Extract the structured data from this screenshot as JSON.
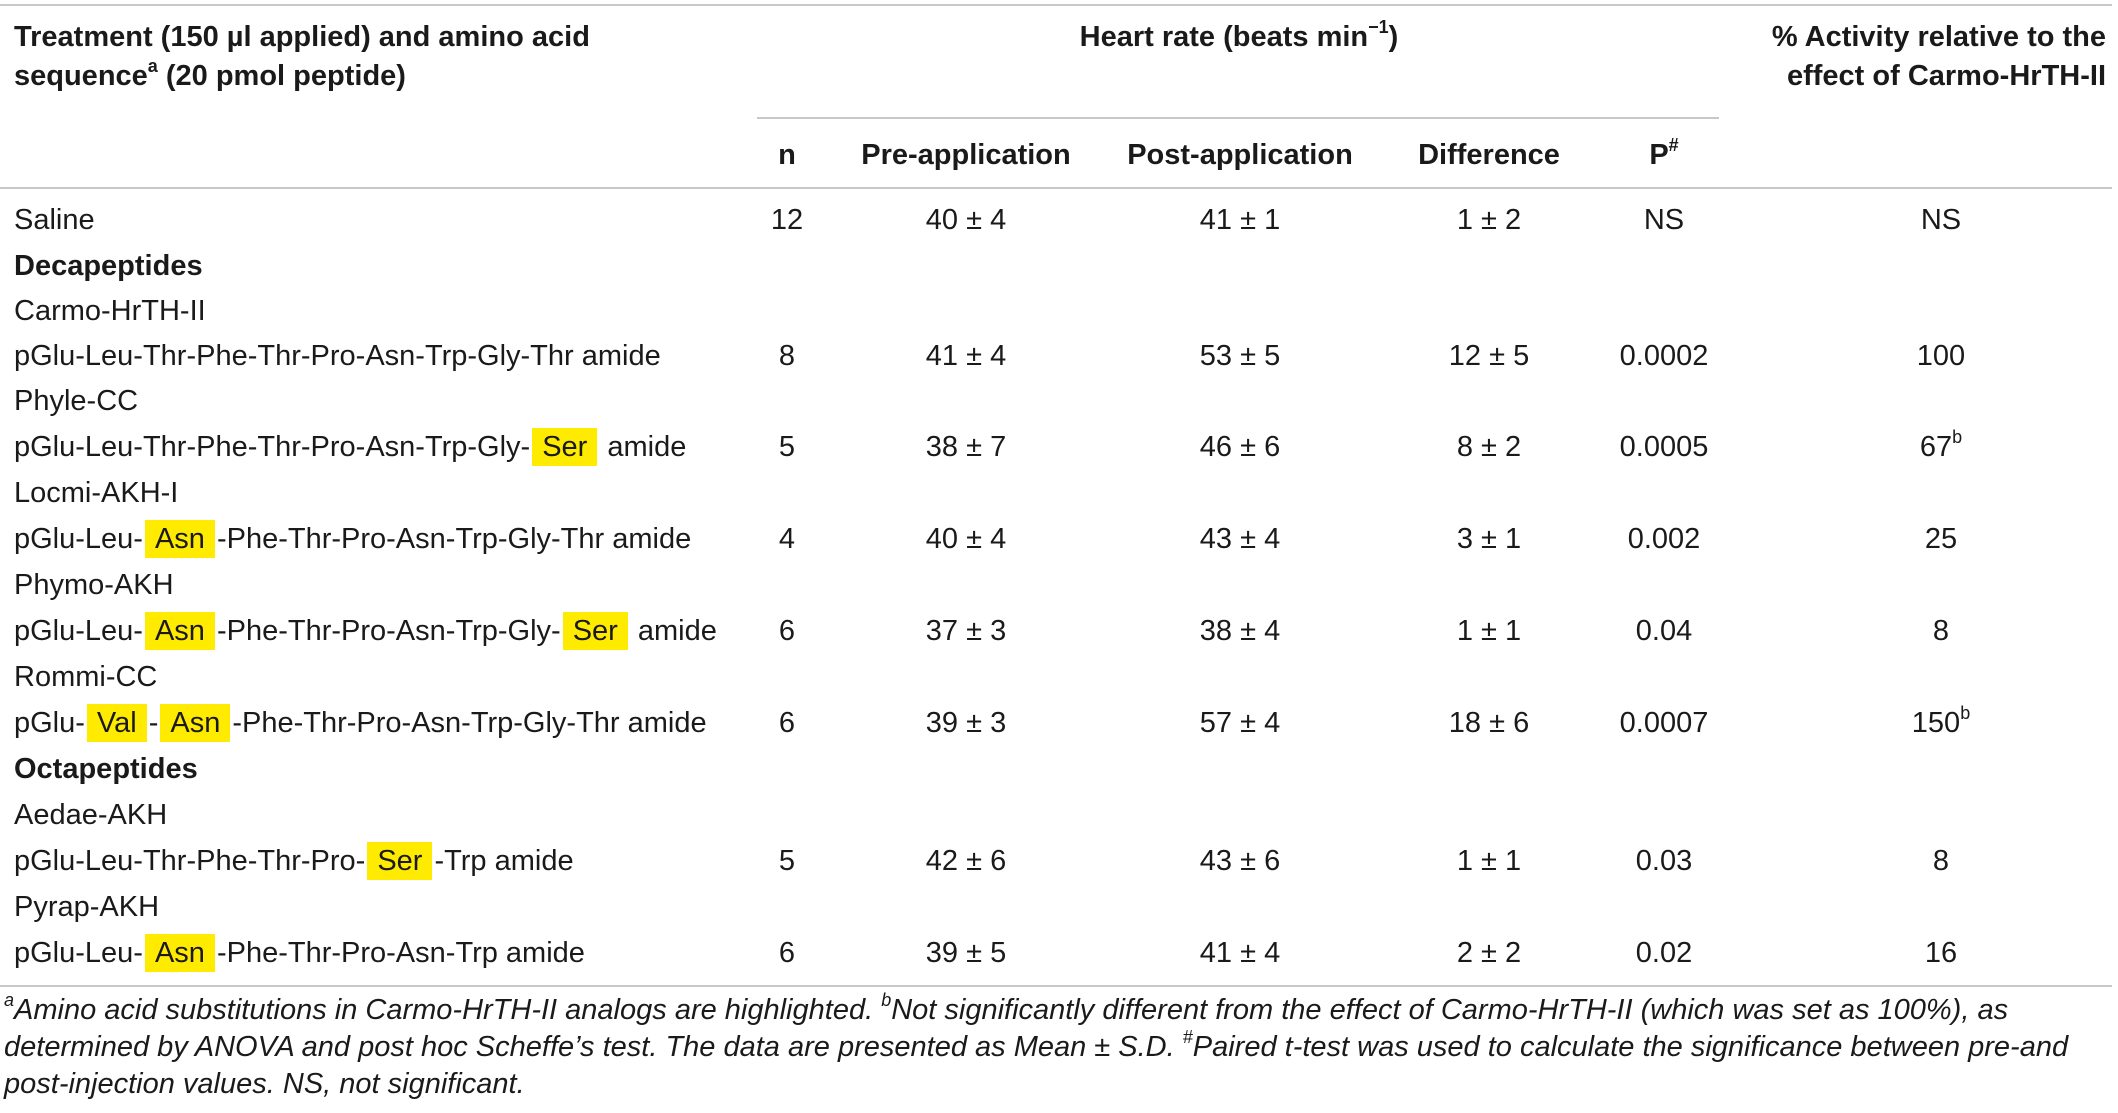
{
  "header": {
    "treatment_line1": "Treatment (150 µl applied) and amino acid",
    "treatment_line2_pre": "sequence",
    "treatment_line2_sup": "a",
    "treatment_line2_post": " (20 pmol peptide)",
    "heart_rate_pre": "Heart rate (beats min",
    "heart_rate_sup": "−1",
    "heart_rate_post": ")",
    "activity_line1": "% Activity relative to the",
    "activity_line2": "effect of Carmo-HrTH-II",
    "col_n": "n",
    "col_pre": "Pre-application",
    "col_post": "Post-application",
    "col_diff": "Difference",
    "col_p": "P",
    "col_p_sup": "#"
  },
  "rows": {
    "saline": {
      "label": "Saline",
      "n": "12",
      "pre": "40 ± 4",
      "post": "41 ± 1",
      "diff": "1 ± 2",
      "p": "NS",
      "act": "NS"
    },
    "decapeptides": "Decapeptides",
    "carmo_name": "Carmo-HrTH-II",
    "carmo": {
      "seq": "pGlu-Leu-Thr-Phe-Thr-Pro-Asn-Trp-Gly-Thr amide",
      "n": "8",
      "pre": "41 ± 4",
      "post": "53 ± 5",
      "diff": "12 ± 5",
      "p": "0.0002",
      "act": "100"
    },
    "phyle_name": "Phyle-CC",
    "phyle": {
      "seq_a": "pGlu-Leu-Thr-Phe-Thr-Pro-Asn-Trp-Gly-",
      "hl1": "Ser",
      "seq_b": " amide",
      "n": "5",
      "pre": "38 ± 7",
      "post": "46 ± 6",
      "diff": "8 ± 2",
      "p": "0.0005",
      "act": "67",
      "act_sup": "b"
    },
    "locmi_name": "Locmi-AKH-I",
    "locmi": {
      "seq_a": "pGlu-Leu-",
      "hl1": "Asn",
      "seq_b": "-Phe-Thr-Pro-Asn-Trp-Gly-Thr amide",
      "n": "4",
      "pre": "40 ± 4",
      "post": "43 ± 4",
      "diff": "3 ± 1",
      "p": "0.002",
      "act": "25"
    },
    "phymo_name": "Phymo-AKH",
    "phymo": {
      "seq_a": "pGlu-Leu-",
      "hl1": "Asn",
      "seq_b": "-Phe-Thr-Pro-Asn-Trp-Gly-",
      "hl2": "Ser",
      "seq_c": " amide",
      "n": "6",
      "pre": "37 ± 3",
      "post": "38 ± 4",
      "diff": "1 ± 1",
      "p": "0.04",
      "act": "8"
    },
    "rommi_name": "Rommi-CC",
    "rommi": {
      "seq_a": "pGlu-",
      "hl1": "Val",
      "seq_b": "-",
      "hl2": "Asn",
      "seq_c": "-Phe-Thr-Pro-Asn-Trp-Gly-Thr amide",
      "n": "6",
      "pre": "39 ± 3",
      "post": "57 ± 4",
      "diff": "18 ± 6",
      "p": "0.0007",
      "act": "150",
      "act_sup": "b"
    },
    "octapeptides": "Octapeptides",
    "aedae_name": "Aedae-AKH",
    "aedae": {
      "seq_a": "pGlu-Leu-Thr-Phe-Thr-Pro-",
      "hl1": "Ser",
      "seq_b": "-Trp amide",
      "n": "5",
      "pre": "42 ± 6",
      "post": "43 ± 6",
      "diff": "1 ± 1",
      "p": "0.03",
      "act": "8"
    },
    "pyrap_name": "Pyrap-AKH",
    "pyrap": {
      "seq_a": "pGlu-Leu-",
      "hl1": "Asn",
      "seq_b": "-Phe-Thr-Pro-Asn-Trp amide",
      "n": "6",
      "pre": "39 ± 5",
      "post": "41 ± 4",
      "diff": "2 ± 2",
      "p": "0.02",
      "act": "16"
    }
  },
  "footnote": {
    "a_sup": "a",
    "a_text": "Amino acid substitutions in Carmo-HrTH-II analogs are highlighted. ",
    "b_sup": "b",
    "b_text": "Not significantly different from the effect of Carmo-HrTH-II (which was set as 100%), as determined by ANOVA and post hoc Scheffe’s test. The data are presented as Mean ± S.D. ",
    "hash_sup": "#",
    "hash_text": "Paired t-test was used to calculate the significance between pre-and post-injection values. NS, not significant."
  },
  "colors": {
    "highlight": "#ffeb00",
    "rule": "#c8c8c8",
    "text": "#1a1a1a"
  }
}
